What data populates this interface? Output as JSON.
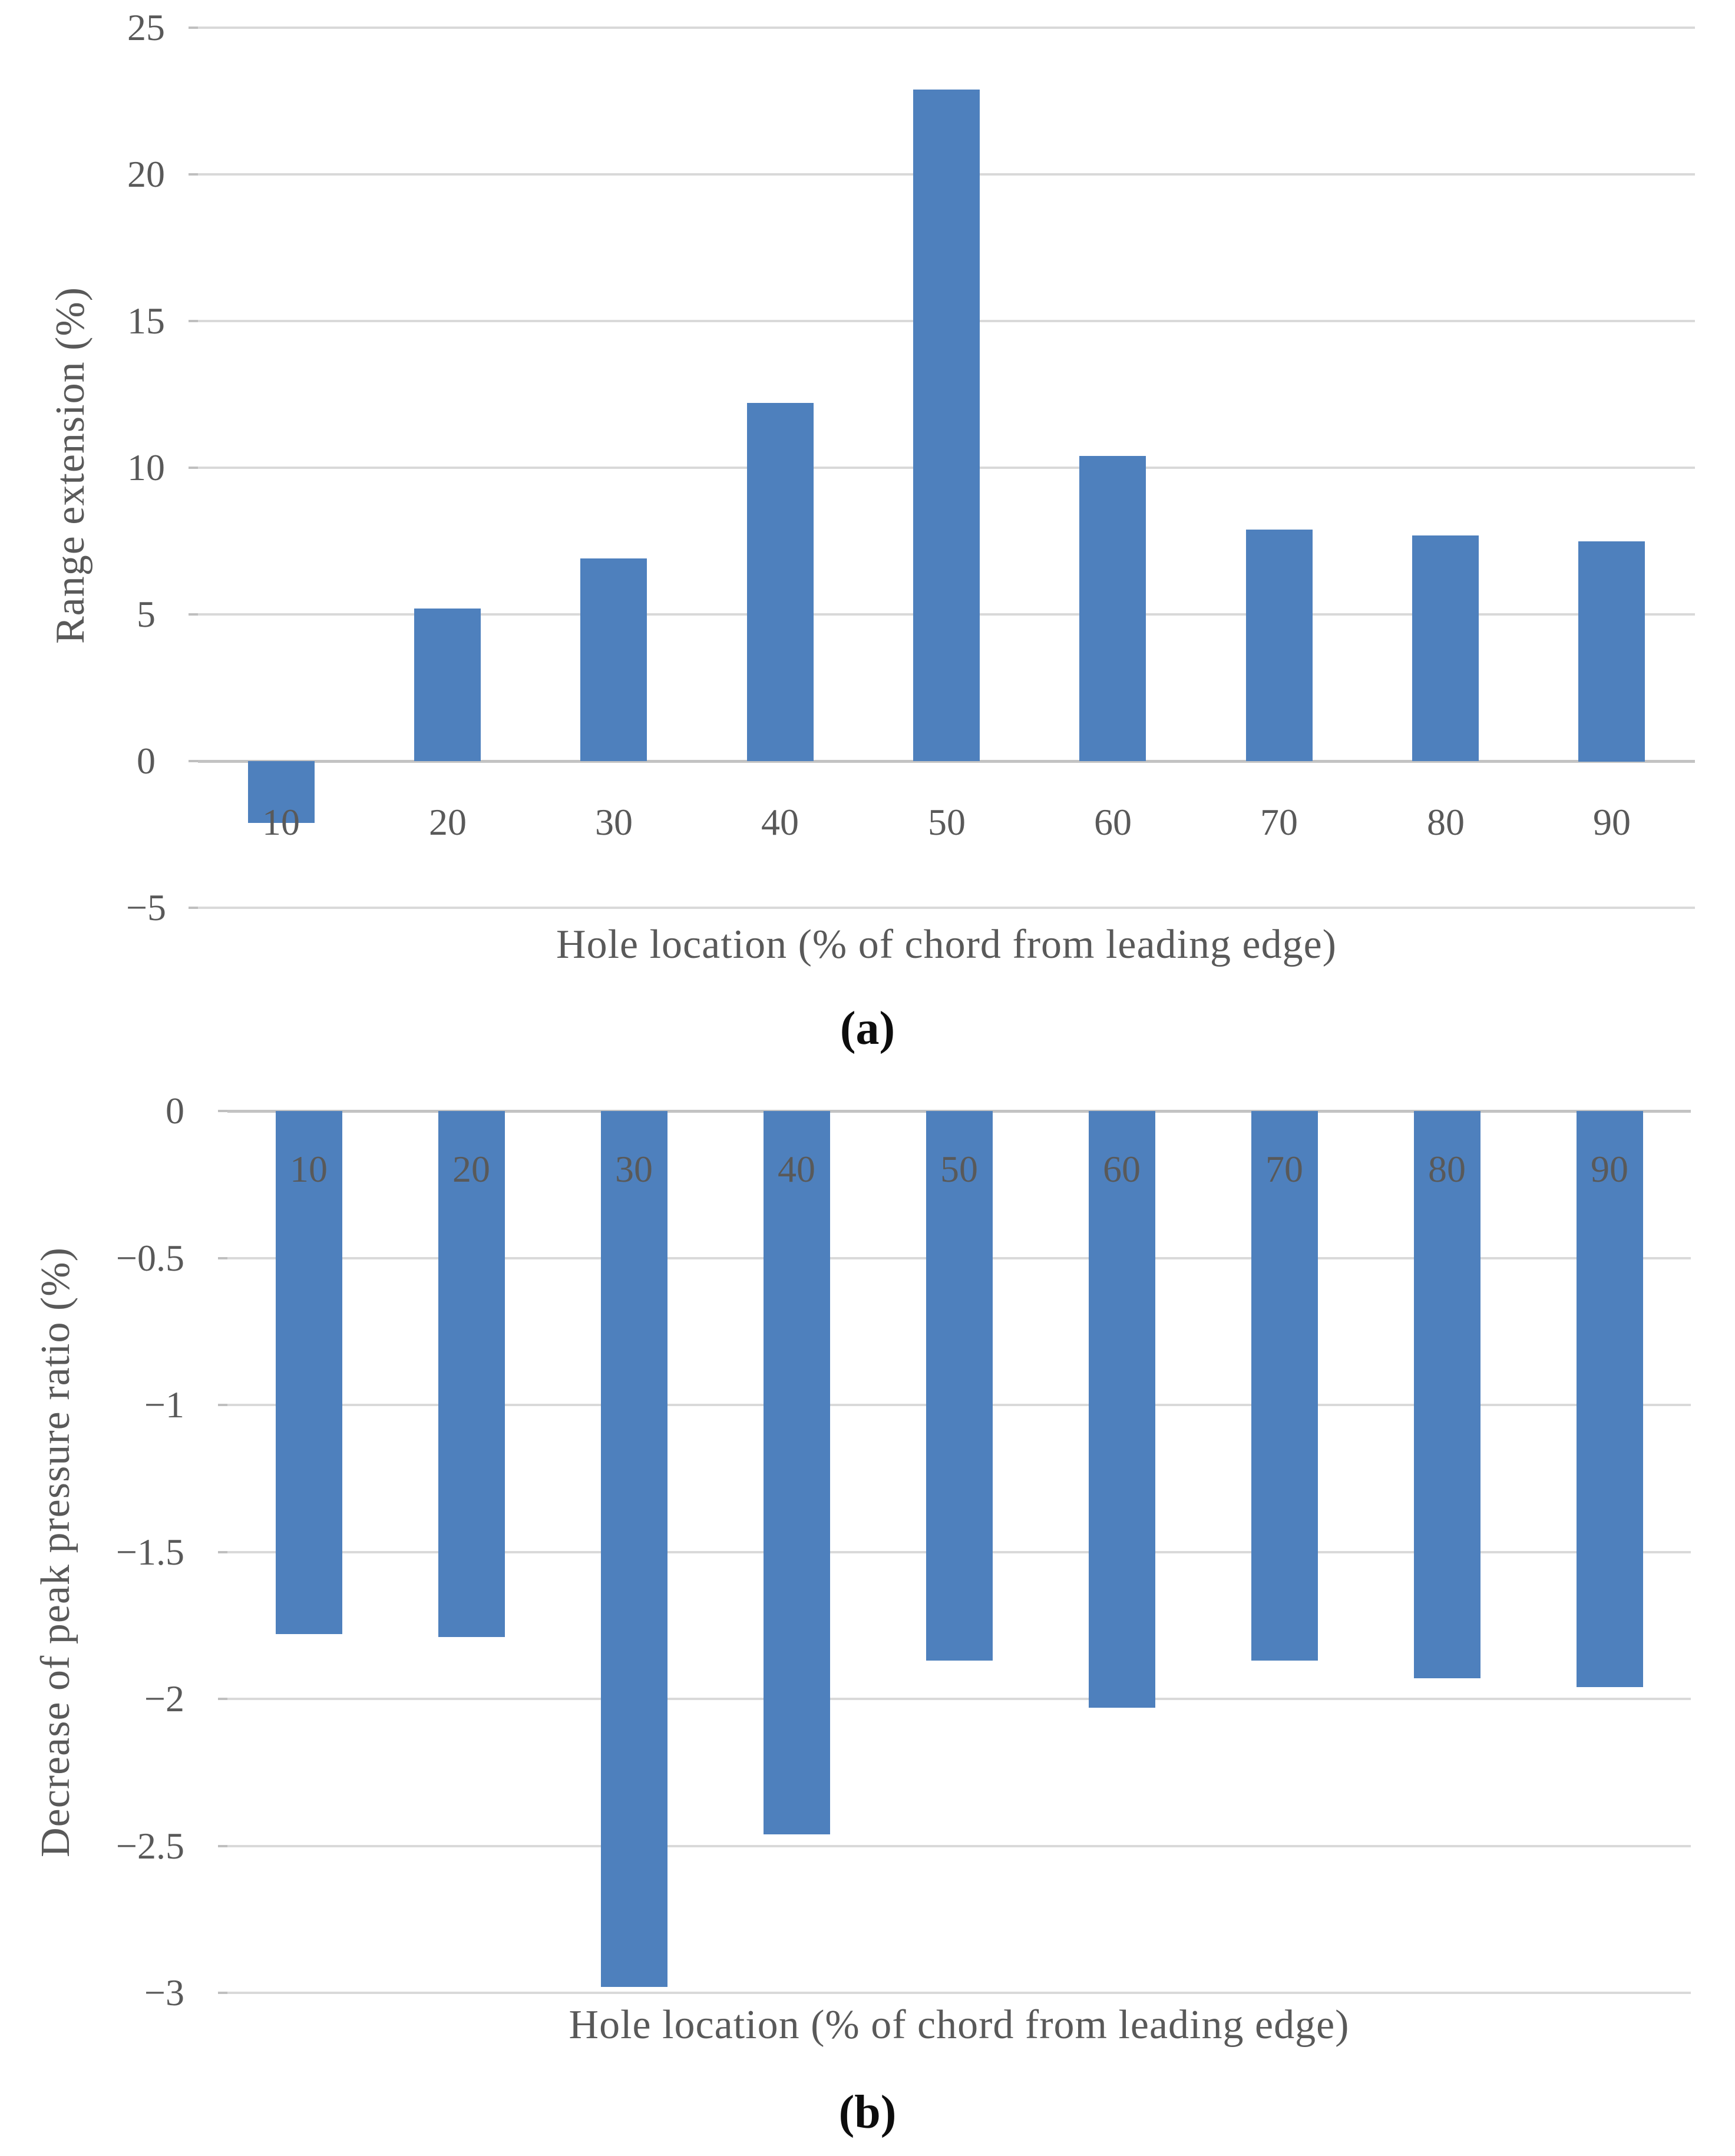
{
  "figure": {
    "panel_a_label": "(a)",
    "panel_b_label": "(b)"
  },
  "colors": {
    "bar": "#4E80BD",
    "axis_text": "#595959",
    "gridline": "#D9D9D9",
    "zero_axis_line": "#C3C3C3",
    "panel_label_text": "#0d0d0d",
    "background": "#ffffff"
  },
  "chart_data": [
    {
      "type": "bar",
      "panel": "a",
      "title": "",
      "xlabel": "Hole location (% of chord from leading edge)",
      "ylabel": "Range extension (%)",
      "categories": [
        "10",
        "20",
        "30",
        "40",
        "50",
        "60",
        "70",
        "80",
        "90"
      ],
      "values": [
        -2.1,
        5.2,
        6.9,
        12.2,
        22.9,
        10.4,
        7.9,
        7.7,
        7.5
      ],
      "ylim": [
        -5,
        25
      ],
      "yticks": [
        {
          "value": 25,
          "label": "25"
        },
        {
          "value": 20,
          "label": "20"
        },
        {
          "value": 15,
          "label": "15"
        },
        {
          "value": 10,
          "label": "10"
        },
        {
          "value": 5,
          "label": "5"
        },
        {
          "value": 0,
          "label": "0"
        },
        {
          "value": -5,
          "label": "−5"
        }
      ],
      "grid": true,
      "legend": false,
      "bar_color": "#4E80BD",
      "category_labels_position": "below zero axis (label 10 overlaps its negative bar)"
    },
    {
      "type": "bar",
      "panel": "b",
      "title": "",
      "xlabel": "Hole location (% of chord from leading edge)",
      "ylabel": "Decrease of peak pressure ratio (%)",
      "categories": [
        "10",
        "20",
        "30",
        "40",
        "50",
        "60",
        "70",
        "80",
        "90"
      ],
      "values": [
        -1.78,
        -1.79,
        -2.98,
        -2.46,
        -1.87,
        -2.03,
        -1.87,
        -1.93,
        -1.96
      ],
      "ylim": [
        -3,
        0
      ],
      "yticks": [
        {
          "value": 0,
          "label": "0"
        },
        {
          "value": -0.5,
          "label": "−0.5"
        },
        {
          "value": -1,
          "label": "−1"
        },
        {
          "value": -1.5,
          "label": "−1.5"
        },
        {
          "value": -2,
          "label": "−2"
        },
        {
          "value": -2.5,
          "label": "−2.5"
        },
        {
          "value": -3,
          "label": "−3"
        }
      ],
      "grid": true,
      "legend": false,
      "bar_color": "#4E80BD",
      "category_labels_position": "inside bars near top"
    }
  ]
}
